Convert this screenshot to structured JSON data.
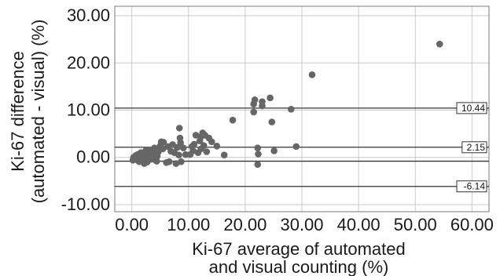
{
  "chart_data": {
    "type": "scatter",
    "title": "",
    "xlabel_lines": [
      "Ki-67 average of automated",
      "and visual counting (%)"
    ],
    "ylabel_lines": [
      "Ki-67 difference",
      "(automated - visual) (%)"
    ],
    "xlim": [
      -3,
      63
    ],
    "ylim": [
      -11.5,
      32
    ],
    "x_ticks": [
      0,
      10,
      20,
      30,
      40,
      50,
      60
    ],
    "x_tick_labels": [
      "0.00",
      "10.00",
      "20.00",
      "30.00",
      "40.00",
      "50.00",
      "60.00"
    ],
    "y_ticks": [
      -10,
      0,
      10,
      20,
      30
    ],
    "y_tick_labels": [
      "-10.00",
      "0.00",
      "10.00",
      "20.00",
      "30.00"
    ],
    "grid": true,
    "colors": {
      "point": "#666666",
      "grid": "#c8c8c8",
      "ref_line": "#333333",
      "zero_line": "#333333"
    },
    "reference_lines": [
      {
        "y": 10.44,
        "label": "10.44"
      },
      {
        "y": 2.15,
        "label": "2.15"
      },
      {
        "y": -6.14,
        "label": "-6.14"
      }
    ],
    "zero_line": {
      "y": -0.8
    },
    "points": [
      {
        "x": 54.3,
        "y": 24.0
      },
      {
        "x": 31.8,
        "y": 17.5
      },
      {
        "x": 28.1,
        "y": 10.2
      },
      {
        "x": 24.4,
        "y": 12.6
      },
      {
        "x": 23.0,
        "y": 11.8
      },
      {
        "x": 23.0,
        "y": 10.9
      },
      {
        "x": 21.7,
        "y": 12.2
      },
      {
        "x": 21.5,
        "y": 11.3
      },
      {
        "x": 21.5,
        "y": 9.6
      },
      {
        "x": 17.8,
        "y": 7.9
      },
      {
        "x": 24.7,
        "y": 7.5
      },
      {
        "x": 29.0,
        "y": 2.3
      },
      {
        "x": 25.1,
        "y": 1.4
      },
      {
        "x": 22.2,
        "y": 2.0
      },
      {
        "x": 22.3,
        "y": 0.7
      },
      {
        "x": 22.2,
        "y": -1.5
      },
      {
        "x": 16.3,
        "y": 0.5
      },
      {
        "x": 14.1,
        "y": 3.3
      },
      {
        "x": 13.6,
        "y": 4.1
      },
      {
        "x": 12.9,
        "y": 4.7
      },
      {
        "x": 12.5,
        "y": 5.2
      },
      {
        "x": 12.2,
        "y": 4.4
      },
      {
        "x": 12.0,
        "y": 3.5
      },
      {
        "x": 11.3,
        "y": 4.7
      },
      {
        "x": 11.0,
        "y": 2.8
      },
      {
        "x": 12.7,
        "y": 2.5
      },
      {
        "x": 12.2,
        "y": 1.8
      },
      {
        "x": 11.7,
        "y": 1.0
      },
      {
        "x": 10.8,
        "y": 1.4
      },
      {
        "x": 10.3,
        "y": 0.6
      },
      {
        "x": 9.5,
        "y": 0.6
      },
      {
        "x": 8.4,
        "y": 6.2
      },
      {
        "x": 8.5,
        "y": 4.1
      },
      {
        "x": 8.6,
        "y": 3.1
      },
      {
        "x": 8.0,
        "y": 2.1
      },
      {
        "x": 8.3,
        "y": 0.5
      },
      {
        "x": 8.7,
        "y": -0.9
      },
      {
        "x": 7.8,
        "y": -1.3
      },
      {
        "x": 7.2,
        "y": 2.7
      },
      {
        "x": 6.9,
        "y": 1.3
      },
      {
        "x": 6.6,
        "y": -0.9
      },
      {
        "x": 6.1,
        "y": -1.1
      },
      {
        "x": 5.6,
        "y": 3.2
      },
      {
        "x": 5.2,
        "y": 3.3
      },
      {
        "x": 5.5,
        "y": 1.8
      },
      {
        "x": 5.0,
        "y": 2.4
      },
      {
        "x": 4.7,
        "y": 1.2
      },
      {
        "x": 4.5,
        "y": 0.3
      },
      {
        "x": 4.2,
        "y": -0.6
      },
      {
        "x": 4.0,
        "y": 2.0
      },
      {
        "x": 3.7,
        "y": 1.0
      },
      {
        "x": 3.4,
        "y": -0.4
      },
      {
        "x": 3.1,
        "y": 0.8
      },
      {
        "x": 2.9,
        "y": 0.0
      },
      {
        "x": 2.7,
        "y": -1.0
      },
      {
        "x": 2.5,
        "y": 1.5
      },
      {
        "x": 2.3,
        "y": 0.4
      },
      {
        "x": 2.1,
        "y": -0.6
      },
      {
        "x": 1.9,
        "y": 0.9
      },
      {
        "x": 1.7,
        "y": -0.2
      },
      {
        "x": 1.5,
        "y": 0.3
      },
      {
        "x": 1.3,
        "y": -0.9
      },
      {
        "x": 1.1,
        "y": 0.1
      },
      {
        "x": 0.9,
        "y": -0.5
      },
      {
        "x": 0.7,
        "y": 0.4
      },
      {
        "x": 0.5,
        "y": -0.3
      },
      {
        "x": 0.3,
        "y": 0.0
      },
      {
        "x": 0.2,
        "y": -0.6
      },
      {
        "x": 1.0,
        "y": 0.6
      },
      {
        "x": 1.6,
        "y": 1.0
      },
      {
        "x": 2.2,
        "y": -1.3
      },
      {
        "x": 3.3,
        "y": 1.6
      },
      {
        "x": 4.4,
        "y": -0.8
      },
      {
        "x": 6.4,
        "y": 2.3
      },
      {
        "x": 7.5,
        "y": 1.0
      },
      {
        "x": 9.1,
        "y": 2.0
      },
      {
        "x": 10.6,
        "y": 2.3
      },
      {
        "x": 13.2,
        "y": 1.2
      },
      {
        "x": 15.0,
        "y": 2.4
      },
      {
        "x": 3.9,
        "y": 0.5
      },
      {
        "x": 2.0,
        "y": 0.2
      },
      {
        "x": 0.6,
        "y": -0.1
      },
      {
        "x": 1.4,
        "y": 0.8
      },
      {
        "x": 2.6,
        "y": 0.6
      }
    ]
  }
}
